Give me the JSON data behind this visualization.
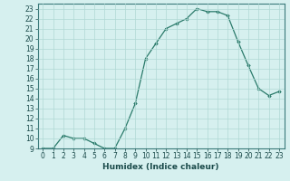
{
  "title": "",
  "xlabel": "Humidex (Indice chaleur)",
  "ylabel": "",
  "x": [
    0,
    1,
    2,
    3,
    4,
    5,
    6,
    7,
    8,
    9,
    10,
    11,
    12,
    13,
    14,
    15,
    16,
    17,
    18,
    19,
    20,
    21,
    22,
    23
  ],
  "y": [
    9.0,
    9.0,
    10.3,
    10.0,
    10.0,
    9.5,
    9.0,
    9.0,
    11.0,
    13.5,
    18.0,
    19.5,
    21.0,
    21.5,
    22.0,
    23.0,
    22.7,
    22.7,
    22.3,
    19.7,
    17.3,
    15.0,
    14.3,
    14.7
  ],
  "line_color": "#2a7a6a",
  "marker": "D",
  "marker_size": 1.8,
  "bg_color": "#d6f0ef",
  "grid_color": "#b0d8d4",
  "ylim": [
    9,
    23.5
  ],
  "xlim": [
    -0.5,
    23.5
  ],
  "yticks": [
    9,
    10,
    11,
    12,
    13,
    14,
    15,
    16,
    17,
    18,
    19,
    20,
    21,
    22,
    23
  ],
  "xticks": [
    0,
    1,
    2,
    3,
    4,
    5,
    6,
    7,
    8,
    9,
    10,
    11,
    12,
    13,
    14,
    15,
    16,
    17,
    18,
    19,
    20,
    21,
    22,
    23
  ],
  "tick_fontsize": 5.5,
  "xlabel_fontsize": 6.5
}
